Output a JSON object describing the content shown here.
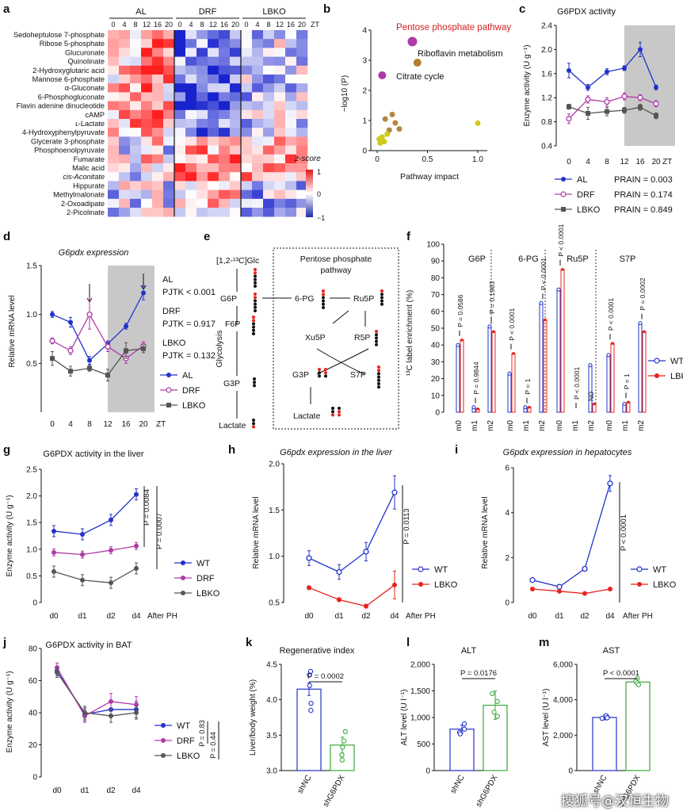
{
  "panel_letters": [
    "a",
    "b",
    "c",
    "d",
    "e",
    "f",
    "g",
    "h",
    "i",
    "j",
    "k",
    "l",
    "m"
  ],
  "colors": {
    "al": "#2233cc",
    "drf": "#b03aa8",
    "lbko_gray": "#555555",
    "wt": "#2233cc",
    "lbko_red": "#e8231c",
    "shnc": "#2233cc",
    "shg6pdx": "#3aa83a",
    "pathway_highlight": "#d42020",
    "gray_band": "#c8c8c8"
  },
  "panel_a": {
    "groups": [
      "AL",
      "DRF",
      "LBKO"
    ],
    "timepoints": [
      "0",
      "4",
      "8",
      "12",
      "16",
      "20"
    ],
    "zt_label": "ZT",
    "metabolites": [
      "Sedoheptulose 7-phosphate",
      "Ribose 5-phosphate",
      "Glucuronate",
      "Quinolinate",
      "2-Hydroxyglutaric acid",
      "Mannose 6-phosphate",
      "α-Gluconate",
      "6-Phosphogluconate",
      "Flavin adenine dinucleotide",
      "cAMP",
      "ʟ-Lactate",
      "4-Hydroxyphenylpyruvate",
      "Glycerate 3-phosphate",
      "Phosphoenolpyruvate",
      "Fumarate",
      "Malic acid",
      "cis-Aconitate",
      "Hippurate",
      "Methylmalonate",
      "2-Oxoadipate",
      "2-Picolinate"
    ],
    "legend_title": "z-score",
    "legend_ticks": [
      "1",
      "0",
      "−1"
    ]
  },
  "panel_b": {
    "ylabel": "−log10 (P)",
    "xlabel": "Pathway impact",
    "xticks": [
      "0",
      "0.5",
      "1.0"
    ],
    "yticks": [
      "0",
      "1",
      "2",
      "3",
      "4"
    ],
    "labels": [
      "Pentose phosphate pathway",
      "Riboflavin metabolism",
      "Citrate cycle"
    ]
  },
  "panel_c": {
    "title": "G6PDX activity",
    "ylabel": "Enzyme activity (U g⁻¹)",
    "yticks": [
      "0.4",
      "0.8",
      "1.2",
      "1.6",
      "2.0",
      "2.4"
    ],
    "xticks": [
      "0",
      "4",
      "8",
      "12",
      "16",
      "20"
    ],
    "zt": "ZT",
    "legend": [
      "AL",
      "DRF",
      "LBKO"
    ],
    "prain": [
      "PRAIN = 0.003",
      "PRAIN = 0.174",
      "PRAIN = 0.849"
    ]
  },
  "panel_d": {
    "title": "G6pdx expression",
    "ylabel": "Relative mRNA level",
    "yticks": [
      "0.5",
      "1.0",
      "1.5"
    ],
    "xticks": [
      "0",
      "4",
      "8",
      "12",
      "16",
      "20"
    ],
    "zt": "ZT",
    "legend": [
      "AL",
      "DRF",
      "LBKO"
    ],
    "group_labels": [
      "AL",
      "DRF",
      "LBKO"
    ],
    "pjtk": [
      "PJTK < 0.001",
      "PJTK = 0.917",
      "PJTK = 0.132"
    ]
  },
  "panel_e": {
    "box_title": "Pentose phosphate pathway",
    "start": "[1,2-¹³C]Glc",
    "nodes": [
      "G6P",
      "F6P",
      "G3P",
      "Lactate",
      "6-PG",
      "Ru5P",
      "Xu5P",
      "R5P",
      "G3P",
      "S7P",
      "Lactate"
    ],
    "glycolysis": "Glycolysis"
  },
  "panel_f": {
    "groups": [
      "G6P",
      "6-PG",
      "Ru5P",
      "S7P"
    ],
    "ylabel": "¹³C label enrichment (%)",
    "yticks": [
      "0",
      "10",
      "20",
      "30",
      "40",
      "50",
      "60",
      "70",
      "80",
      "90",
      "100"
    ],
    "xticks": [
      "m0",
      "m1",
      "m2"
    ],
    "legend": [
      "WT",
      "LBKO"
    ],
    "pvals": [
      "P = 0.0586",
      "P = 0.9844",
      "P = 0.1983",
      "P < 0.0001",
      "P = 1",
      "P < 0.0001",
      "P < 0.0001",
      "P < 0.0001",
      "ND",
      "P < 0.0001",
      "P = 1",
      "P = 0.0002"
    ]
  },
  "panel_g": {
    "title": "G6PDX activity in the liver",
    "ylabel": "Enzyme activity (U g⁻¹)",
    "yticks": [
      "0",
      "0.5",
      "1.0",
      "1.5",
      "2.0",
      "2.5"
    ],
    "xticks": [
      "d0",
      "d1",
      "d2",
      "d4"
    ],
    "after": "After PH",
    "legend": [
      "WT",
      "DRF",
      "LBKO"
    ],
    "pvals": [
      "P = 0.0084",
      "P = 0.0007"
    ]
  },
  "panel_h": {
    "title": "G6pdx expression in the liver",
    "ylabel": "Relative mRNA level",
    "yticks": [
      "0.5",
      "1.0",
      "1.5",
      "2.0"
    ],
    "xticks": [
      "d0",
      "d1",
      "d2",
      "d4"
    ],
    "after": "After PH",
    "legend": [
      "WT",
      "LBKO"
    ],
    "pvals": [
      "P = 0.0113"
    ]
  },
  "panel_i": {
    "title": "G6pdx expression in hepatocytes",
    "ylabel": "Relative mRNA level",
    "yticks": [
      "0",
      "2",
      "4",
      "6"
    ],
    "xticks": [
      "d0",
      "d1",
      "d2",
      "d4"
    ],
    "after": "After PH",
    "legend": [
      "WT",
      "LBKO"
    ],
    "pvals": [
      "P < 0.0001"
    ]
  },
  "panel_j": {
    "title": "G6PDX activity in BAT",
    "ylabel": "Enzyme activity (U g⁻¹)",
    "yticks": [
      "0",
      "20",
      "40",
      "60",
      "80"
    ],
    "xticks": [
      "d0",
      "d1",
      "d2",
      "d4"
    ],
    "legend": [
      "WT",
      "DRF",
      "LBKO"
    ],
    "pvals": [
      "P = 0.83",
      "P = 0.44"
    ]
  },
  "panel_k": {
    "title": "Regenerative index",
    "ylabel": "Liver/body weight (%)",
    "yticks": [
      "3.0",
      "3.5",
      "4.0",
      "4.5"
    ],
    "xticks": [
      "shNC",
      "shG6PDX"
    ],
    "pval": "P = 0.0002"
  },
  "panel_l": {
    "title": "ALT",
    "ylabel": "ALT level (U l⁻¹)",
    "yticks": [
      "0",
      "500",
      "1,000",
      "1,500",
      "2,000"
    ],
    "xticks": [
      "shNC",
      "shG6PDX"
    ],
    "pval": "P = 0.0176"
  },
  "panel_m": {
    "title": "AST",
    "ylabel": "AST level (U l⁻¹)",
    "yticks": [
      "0",
      "2,000",
      "4,000",
      "6,000"
    ],
    "xticks": [
      "shNC",
      "shG6PDX"
    ],
    "pval": "P < 0.0001"
  },
  "watermark": "搜狐号@汉恒生物",
  "chart_data": [
    {
      "panel": "c",
      "type": "line",
      "x": [
        0,
        4,
        8,
        12,
        16,
        20
      ],
      "ylim": [
        0.4,
        2.4
      ],
      "series": [
        {
          "name": "AL",
          "values": [
            1.65,
            1.37,
            1.63,
            1.69,
            2.0,
            1.37
          ]
        },
        {
          "name": "DRF",
          "values": [
            0.85,
            1.17,
            1.13,
            1.22,
            1.2,
            1.1
          ]
        },
        {
          "name": "LBKO",
          "values": [
            1.05,
            0.94,
            0.97,
            0.99,
            1.04,
            0.9
          ]
        }
      ]
    },
    {
      "panel": "d",
      "type": "line",
      "x": [
        0,
        4,
        8,
        12,
        16,
        20
      ],
      "ylim": [
        0,
        1.5
      ],
      "series": [
        {
          "name": "AL",
          "values": [
            1.0,
            0.92,
            0.53,
            0.7,
            0.88,
            1.22
          ]
        },
        {
          "name": "DRF",
          "values": [
            0.73,
            0.63,
            1.0,
            0.67,
            0.55,
            0.68
          ]
        },
        {
          "name": "LBKO",
          "values": [
            0.55,
            0.42,
            0.45,
            0.38,
            0.63,
            0.65
          ]
        }
      ]
    },
    {
      "panel": "b",
      "type": "scatter",
      "points": [
        [
          0.35,
          3.62
        ],
        [
          0.4,
          2.92
        ],
        [
          0.05,
          2.5
        ],
        [
          1.0,
          0.91
        ],
        [
          0.15,
          1.2
        ],
        [
          0.18,
          0.92
        ],
        [
          0.08,
          1.05
        ],
        [
          0.12,
          0.68
        ],
        [
          0.22,
          0.72
        ],
        [
          0.05,
          0.45
        ],
        [
          0.02,
          0.38
        ],
        [
          0.07,
          0.3
        ],
        [
          0.03,
          0.25
        ],
        [
          0.1,
          0.55
        ]
      ]
    },
    {
      "panel": "f",
      "type": "bar",
      "categories": [
        "G6P m0",
        "G6P m1",
        "G6P m2",
        "6-PG m0",
        "6-PG m1",
        "6-PG m2",
        "Ru5P m0",
        "Ru5P m1",
        "Ru5P m2",
        "S7P m0",
        "S7P m1",
        "S7P m2"
      ],
      "series": [
        {
          "name": "WT",
          "values": [
            40,
            3,
            51,
            23,
            3,
            65,
            73,
            0,
            28,
            34,
            5,
            53
          ]
        },
        {
          "name": "LBKO",
          "values": [
            43,
            2,
            48,
            35,
            3,
            55,
            85,
            0,
            5,
            41,
            6,
            48
          ]
        }
      ],
      "ylim": [
        0,
        100
      ]
    },
    {
      "panel": "g",
      "type": "line",
      "x": [
        "d0",
        "d1",
        "d2",
        "d4"
      ],
      "ylim": [
        0,
        2.5
      ],
      "series": [
        {
          "name": "WT",
          "values": [
            1.34,
            1.28,
            1.55,
            2.03
          ]
        },
        {
          "name": "DRF",
          "values": [
            0.94,
            0.9,
            0.98,
            1.06
          ]
        },
        {
          "name": "LBKO",
          "values": [
            0.58,
            0.42,
            0.37,
            0.64
          ]
        }
      ]
    },
    {
      "panel": "h",
      "type": "line",
      "x": [
        "d0",
        "d1",
        "d2",
        "d4"
      ],
      "ylim": [
        0.5,
        2.0
      ],
      "series": [
        {
          "name": "WT",
          "values": [
            0.98,
            0.83,
            1.05,
            1.69
          ]
        },
        {
          "name": "LBKO",
          "values": [
            0.66,
            0.53,
            0.46,
            0.69
          ]
        }
      ]
    },
    {
      "panel": "i",
      "type": "line",
      "x": [
        "d0",
        "d1",
        "d2",
        "d4"
      ],
      "ylim": [
        0,
        6
      ],
      "series": [
        {
          "name": "WT",
          "values": [
            1.0,
            0.7,
            1.5,
            5.3
          ]
        },
        {
          "name": "LBKO",
          "values": [
            0.6,
            0.5,
            0.4,
            0.6
          ]
        }
      ]
    },
    {
      "panel": "j",
      "type": "line",
      "x": [
        "d0",
        "d1",
        "d2",
        "d4"
      ],
      "ylim": [
        0,
        80
      ],
      "series": [
        {
          "name": "WT",
          "values": [
            66,
            39,
            42,
            42
          ]
        },
        {
          "name": "DRF",
          "values": [
            68,
            38,
            47,
            45
          ]
        },
        {
          "name": "LBKO",
          "values": [
            65,
            40,
            38,
            40
          ]
        }
      ]
    },
    {
      "panel": "k",
      "type": "bar",
      "categories": [
        "shNC",
        "shG6PDX"
      ],
      "values": [
        4.15,
        3.36
      ],
      "ylim": [
        3.0,
        4.5
      ]
    },
    {
      "panel": "l",
      "type": "bar",
      "categories": [
        "shNC",
        "shG6PDX"
      ],
      "values": [
        780,
        1230
      ],
      "ylim": [
        0,
        2000
      ]
    },
    {
      "panel": "m",
      "type": "bar",
      "categories": [
        "shNC",
        "shG6PDX"
      ],
      "values": [
        3000,
        5000
      ],
      "ylim": [
        0,
        6000
      ]
    }
  ]
}
